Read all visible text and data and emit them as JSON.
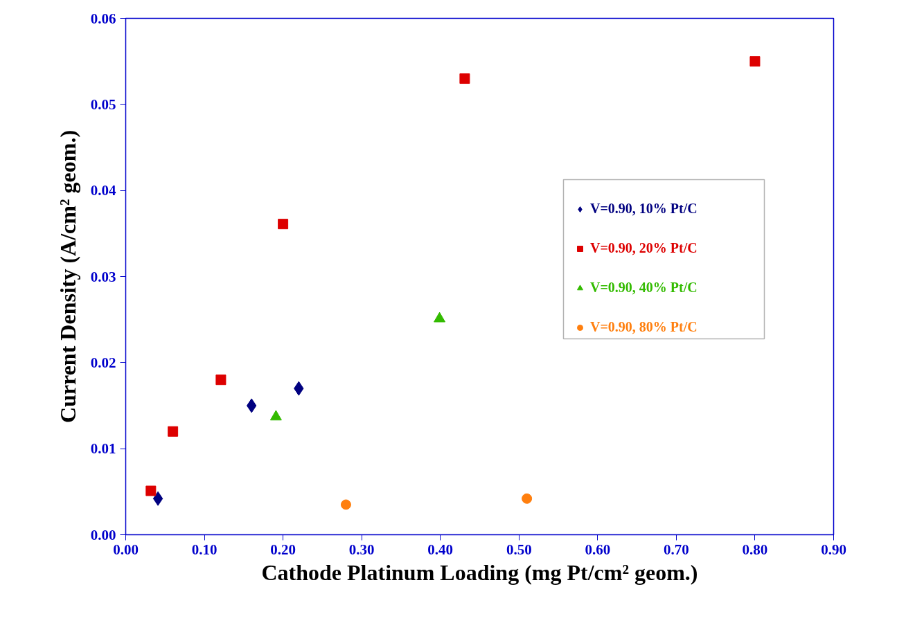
{
  "chart_data": {
    "type": "scatter",
    "xlabel": "Cathode Platinum Loading (mg Pt/cm² geom.)",
    "ylabel": "Current Density (A/cm² geom.)",
    "xlim": [
      0,
      0.9
    ],
    "ylim": [
      0,
      0.06
    ],
    "xticks": [
      {
        "value": 0,
        "label": "0.00"
      },
      {
        "value": 0.1,
        "label": "0.10"
      },
      {
        "value": 0.2,
        "label": "0.20"
      },
      {
        "value": 0.3,
        "label": "0.30"
      },
      {
        "value": 0.4,
        "label": "0.40"
      },
      {
        "value": 0.5,
        "label": "0.50"
      },
      {
        "value": 0.6,
        "label": "0.60"
      },
      {
        "value": 0.7,
        "label": "0.70"
      },
      {
        "value": 0.8,
        "label": "0.80"
      },
      {
        "value": 0.9,
        "label": "0.90"
      }
    ],
    "yticks": [
      {
        "value": 0,
        "label": "0.00"
      },
      {
        "value": 0.01,
        "label": "0.01"
      },
      {
        "value": 0.02,
        "label": "0.02"
      },
      {
        "value": 0.03,
        "label": "0.03"
      },
      {
        "value": 0.04,
        "label": "0.04"
      },
      {
        "value": 0.05,
        "label": "0.05"
      },
      {
        "value": 0.06,
        "label": "0.06"
      }
    ],
    "grid": false,
    "legend": "right",
    "series": [
      {
        "name": "V=0.90, 10% Pt/C",
        "color": "#000080",
        "marker": "diamond",
        "x": [
          0.041,
          0.16,
          0.22
        ],
        "values": [
          0.0042,
          0.015,
          0.017
        ]
      },
      {
        "name": "V=0.90, 20% Pt/C",
        "color": "#dd0000",
        "marker": "square",
        "x": [
          0.032,
          0.06,
          0.121,
          0.2,
          0.431,
          0.8
        ],
        "values": [
          0.0051,
          0.012,
          0.018,
          0.0361,
          0.053,
          0.055
        ]
      },
      {
        "name": "V=0.90, 40% Pt/C",
        "color": "#33bb00",
        "marker": "triangle",
        "x": [
          0.191,
          0.399
        ],
        "values": [
          0.0137,
          0.0251
        ]
      },
      {
        "name": "V=0.90, 80% Pt/C",
        "color": "#ff7f0e",
        "marker": "circle",
        "x": [
          0.28,
          0.51
        ],
        "values": [
          0.0035,
          0.0042
        ]
      }
    ]
  }
}
